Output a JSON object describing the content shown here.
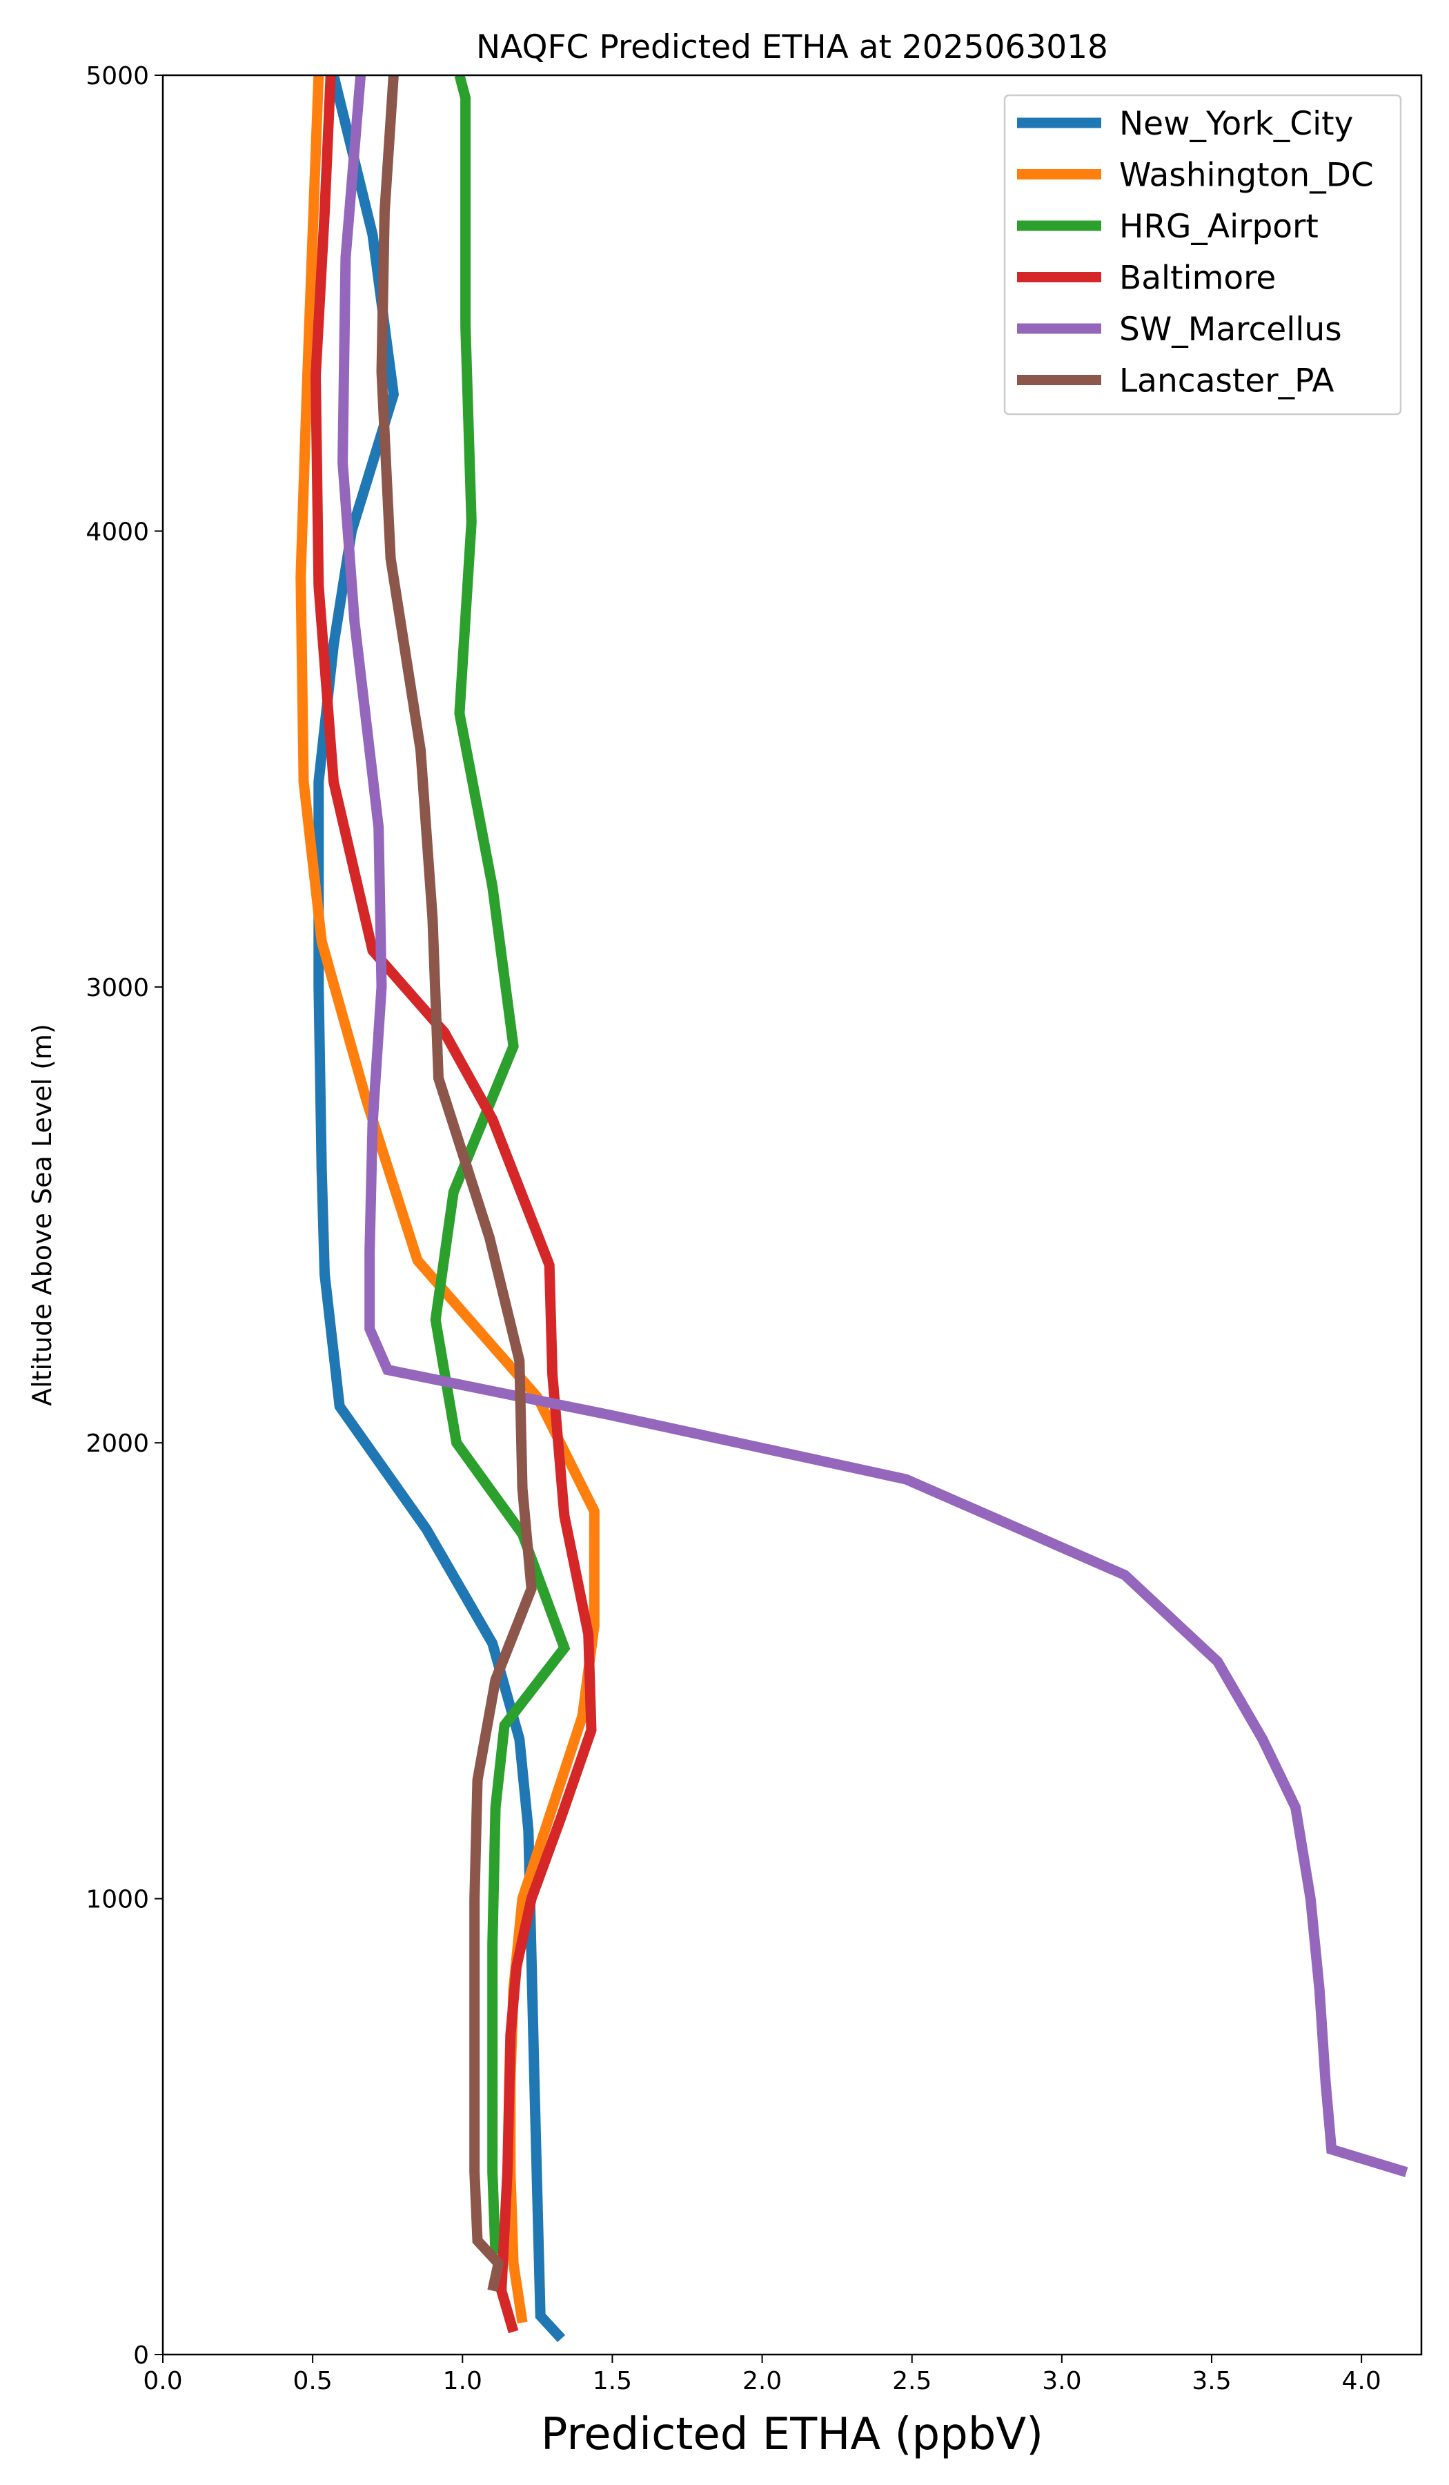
{
  "chart_data": {
    "type": "line",
    "title": "NAQFC Predicted ETHA at 2025063018",
    "xlabel": "Predicted ETHA (ppbV)",
    "ylabel": "Altitude Above Sea Level (m)",
    "xlim": [
      0.0,
      4.2
    ],
    "ylim": [
      0,
      5000
    ],
    "xticks": [
      "0.0",
      "0.5",
      "1.0",
      "1.5",
      "2.0",
      "2.5",
      "3.0",
      "3.5",
      "4.0"
    ],
    "yticks": [
      "0",
      "1000",
      "2000",
      "3000",
      "4000",
      "5000"
    ],
    "legend_position": "upper right",
    "grid": false,
    "series": [
      {
        "name": "New_York_City",
        "color": "#1f77b4",
        "points": [
          [
            1.33,
            35
          ],
          [
            1.26,
            85
          ],
          [
            1.24,
            600
          ],
          [
            1.22,
            1150
          ],
          [
            1.19,
            1350
          ],
          [
            1.1,
            1560
          ],
          [
            0.88,
            1810
          ],
          [
            0.59,
            2080
          ],
          [
            0.54,
            2370
          ],
          [
            0.53,
            2600
          ],
          [
            0.52,
            3000
          ],
          [
            0.52,
            3450
          ],
          [
            0.57,
            3750
          ],
          [
            0.63,
            4000
          ],
          [
            0.77,
            4300
          ],
          [
            0.7,
            4650
          ],
          [
            0.57,
            5000
          ]
        ]
      },
      {
        "name": "Washington_DC",
        "color": "#ff7f0e",
        "points": [
          [
            1.2,
            70
          ],
          [
            1.17,
            200
          ],
          [
            1.16,
            400
          ],
          [
            1.16,
            600
          ],
          [
            1.17,
            800
          ],
          [
            1.2,
            1000
          ],
          [
            1.3,
            1200
          ],
          [
            1.4,
            1400
          ],
          [
            1.44,
            1600
          ],
          [
            1.44,
            1850
          ],
          [
            1.25,
            2100
          ],
          [
            0.85,
            2400
          ],
          [
            0.68,
            2750
          ],
          [
            0.53,
            3100
          ],
          [
            0.47,
            3450
          ],
          [
            0.46,
            3900
          ],
          [
            0.48,
            4300
          ],
          [
            0.5,
            4650
          ],
          [
            0.52,
            5000
          ]
        ]
      },
      {
        "name": "HRG_Airport",
        "color": "#2ca02c",
        "points": [
          [
            1.11,
            220
          ],
          [
            1.1,
            400
          ],
          [
            1.1,
            700
          ],
          [
            1.1,
            900
          ],
          [
            1.11,
            1200
          ],
          [
            1.14,
            1380
          ],
          [
            1.34,
            1550
          ],
          [
            1.2,
            1800
          ],
          [
            0.98,
            2000
          ],
          [
            0.91,
            2270
          ],
          [
            0.97,
            2550
          ],
          [
            1.17,
            2870
          ],
          [
            1.1,
            3220
          ],
          [
            0.99,
            3600
          ],
          [
            1.03,
            4020
          ],
          [
            1.01,
            4450
          ],
          [
            1.01,
            4950
          ],
          [
            0.99,
            5000
          ]
        ]
      },
      {
        "name": "Baltimore",
        "color": "#d62728",
        "points": [
          [
            1.17,
            50
          ],
          [
            1.13,
            140
          ],
          [
            1.15,
            400
          ],
          [
            1.16,
            700
          ],
          [
            1.18,
            850
          ],
          [
            1.23,
            1000
          ],
          [
            1.33,
            1180
          ],
          [
            1.43,
            1370
          ],
          [
            1.42,
            1580
          ],
          [
            1.34,
            1840
          ],
          [
            1.3,
            2150
          ],
          [
            1.29,
            2390
          ],
          [
            1.1,
            2710
          ],
          [
            0.94,
            2900
          ],
          [
            0.7,
            3080
          ],
          [
            0.57,
            3450
          ],
          [
            0.52,
            3880
          ],
          [
            0.51,
            4340
          ],
          [
            0.54,
            4700
          ],
          [
            0.56,
            5000
          ]
        ]
      },
      {
        "name": "SW_Marcellus",
        "color": "#9467bd",
        "points": [
          [
            4.15,
            400
          ],
          [
            3.9,
            450
          ],
          [
            3.88,
            600
          ],
          [
            3.86,
            800
          ],
          [
            3.83,
            1000
          ],
          [
            3.78,
            1200
          ],
          [
            3.67,
            1350
          ],
          [
            3.52,
            1520
          ],
          [
            3.21,
            1710
          ],
          [
            2.48,
            1920
          ],
          [
            1.5,
            2060
          ],
          [
            0.75,
            2160
          ],
          [
            0.69,
            2250
          ],
          [
            0.69,
            2420
          ],
          [
            0.7,
            2700
          ],
          [
            0.73,
            3000
          ],
          [
            0.72,
            3350
          ],
          [
            0.64,
            3800
          ],
          [
            0.6,
            4150
          ],
          [
            0.61,
            4600
          ],
          [
            0.66,
            5000
          ]
        ]
      },
      {
        "name": "Lancaster_PA",
        "color": "#8c564b",
        "points": [
          [
            1.1,
            140
          ],
          [
            1.12,
            200
          ],
          [
            1.05,
            250
          ],
          [
            1.04,
            400
          ],
          [
            1.04,
            700
          ],
          [
            1.04,
            1000
          ],
          [
            1.05,
            1260
          ],
          [
            1.11,
            1480
          ],
          [
            1.23,
            1680
          ],
          [
            1.2,
            1900
          ],
          [
            1.19,
            2180
          ],
          [
            1.09,
            2450
          ],
          [
            0.92,
            2800
          ],
          [
            0.9,
            3150
          ],
          [
            0.86,
            3520
          ],
          [
            0.76,
            3940
          ],
          [
            0.73,
            4350
          ],
          [
            0.74,
            4700
          ],
          [
            0.77,
            5000
          ]
        ]
      }
    ]
  }
}
